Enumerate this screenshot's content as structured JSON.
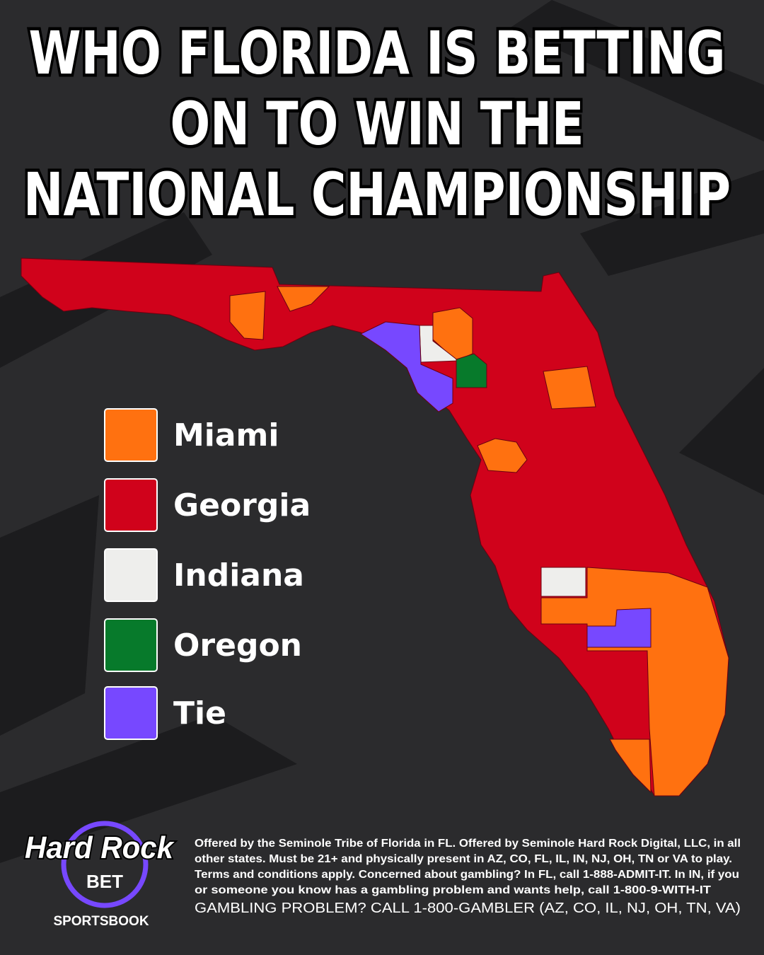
{
  "header": {
    "title_lines": [
      "WHO FLORIDA IS BETTING",
      "ON TO WIN THE",
      "NATIONAL CHAMPIONSHIP"
    ]
  },
  "legend": {
    "items": [
      {
        "label": "Miami",
        "color": "#ff7110"
      },
      {
        "label": "Georgia",
        "color": "#d0021b"
      },
      {
        "label": "Indiana",
        "color": "#eeeeec"
      },
      {
        "label": "Oregon",
        "color": "#077a2b"
      },
      {
        "label": "Tie",
        "color": "#7748ff"
      }
    ]
  },
  "logo": {
    "brand": "Hard Rock",
    "bet": "BET",
    "product": "SPORTSBOOK"
  },
  "footer": {
    "disclaimer_lines": [
      "Offered by the Seminole Tribe of Florida in FL. Offered by Seminole Hard Rock Digital, LLC, in all",
      "other states. Must be 21+ and physically present in AZ, CO, FL, IL, IN, NJ, OH, TN or VA to play.",
      "Terms and conditions apply. Concerned about gambling? In FL, call 1-888-ADMIT-IT. In IN, if you",
      "or someone you know has a gambling problem and wants help, call 1-800-9-WITH-IT"
    ],
    "helpline": "GAMBLING PROBLEM? CALL 1-800-GAMBLER (AZ, CO, IL, NJ, OH, TN, VA)"
  }
}
